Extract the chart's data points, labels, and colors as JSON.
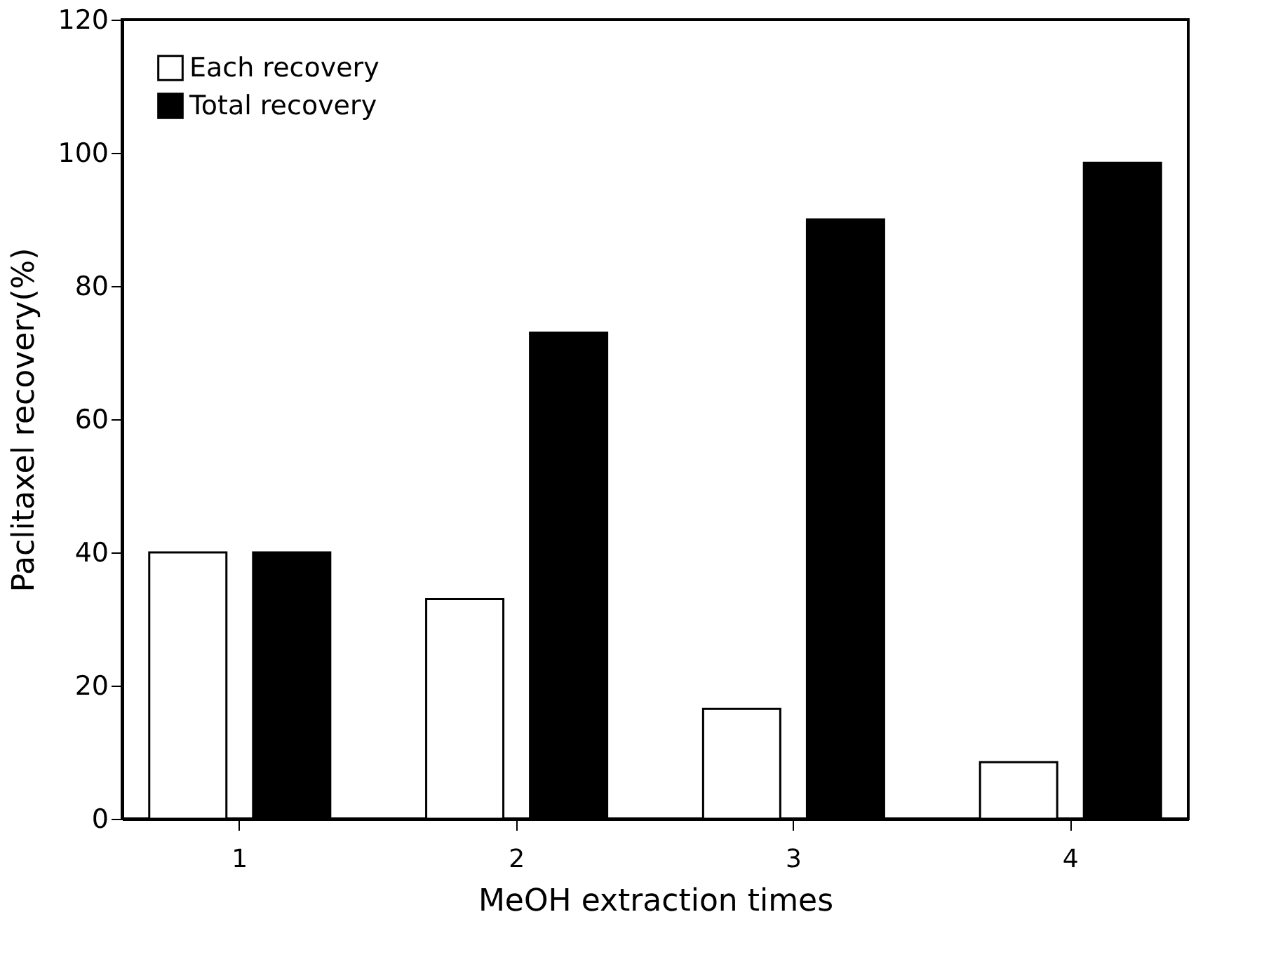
{
  "chart_data": {
    "type": "bar",
    "xlabel": "MeOH extraction times",
    "ylabel": "Paclitaxel recovery(%)",
    "categories": [
      "1",
      "2",
      "3",
      "4"
    ],
    "series": [
      {
        "name": "Each recovery",
        "color": "#ffffff",
        "values": [
          40,
          33,
          16.5,
          8.5
        ]
      },
      {
        "name": "Total recovery",
        "color": "#000000",
        "values": [
          40,
          73,
          90,
          98.5
        ]
      }
    ],
    "ylim": [
      0,
      120
    ],
    "yticks": [
      0,
      20,
      40,
      60,
      80,
      100,
      120
    ],
    "grid": false,
    "legend": "top left"
  }
}
